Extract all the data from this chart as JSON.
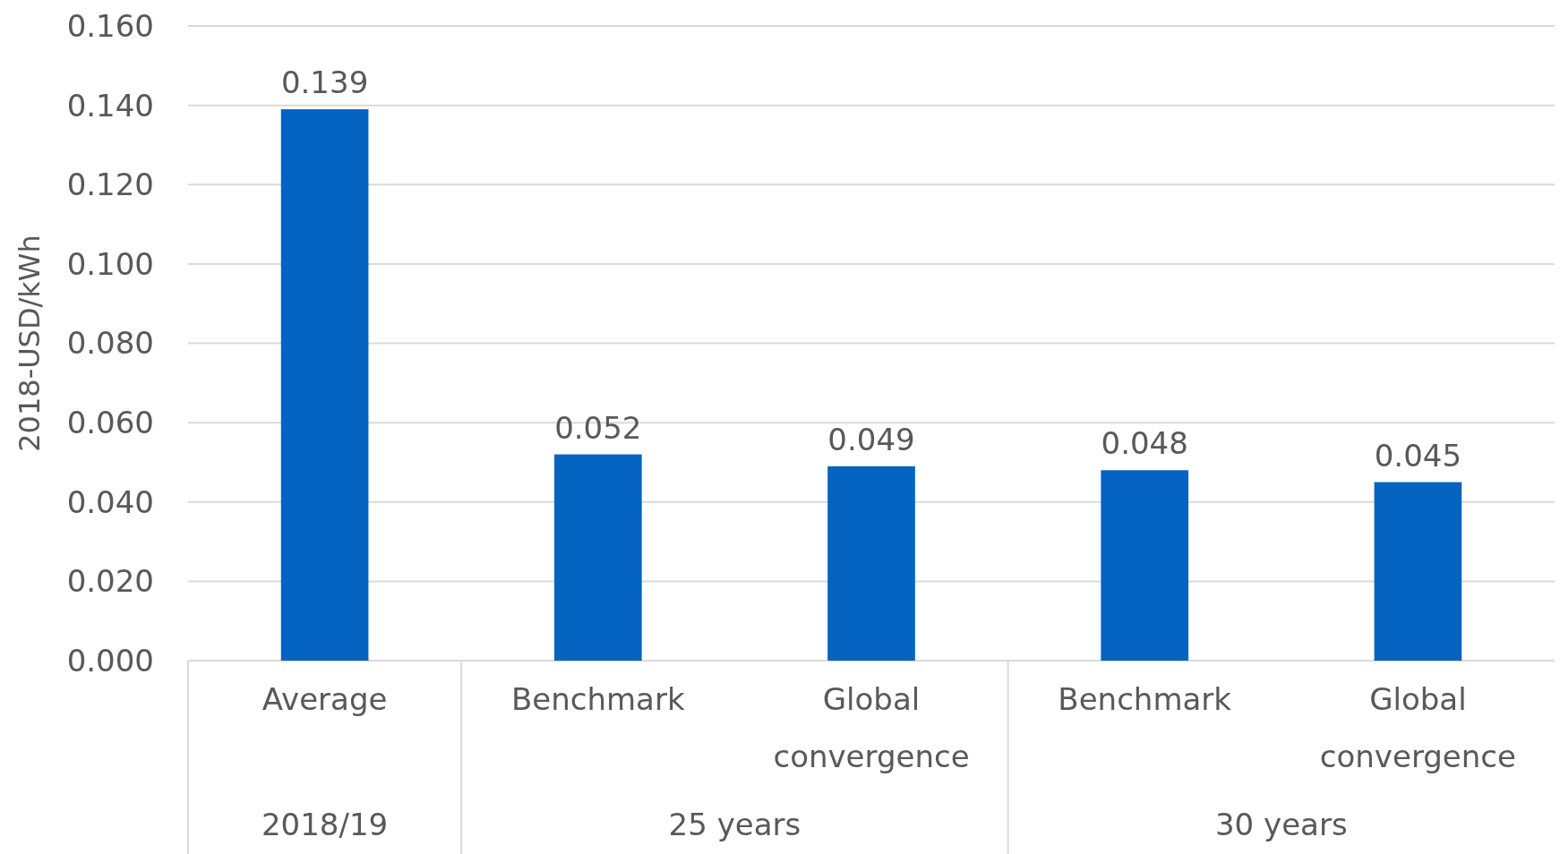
{
  "chart_data": {
    "type": "bar",
    "ylabel": "2018-USD/kWh",
    "categories": [
      "Average",
      "Benchmark",
      "Global convergence",
      "Benchmark",
      "Global convergence"
    ],
    "values": [
      0.139,
      0.052,
      0.049,
      0.048,
      0.045
    ],
    "color": "#0563c1",
    "ylim": [
      0,
      0.16
    ],
    "yticks": [
      {
        "value": 0,
        "label": "0.000"
      },
      {
        "value": 0.02,
        "label": "0.020"
      },
      {
        "value": 0.04,
        "label": "0.040"
      },
      {
        "value": 0.06,
        "label": "0.060"
      },
      {
        "value": 0.08,
        "label": "0.080"
      },
      {
        "value": 0.1,
        "label": "0.100"
      },
      {
        "value": 0.12,
        "label": "0.120"
      },
      {
        "value": 0.14,
        "label": "0.140"
      },
      {
        "value": 0.16,
        "label": "0.160"
      }
    ],
    "grid": "y",
    "data_labels": true,
    "annotations": [
      "2018/19",
      "25 years",
      "30 years"
    ]
  }
}
